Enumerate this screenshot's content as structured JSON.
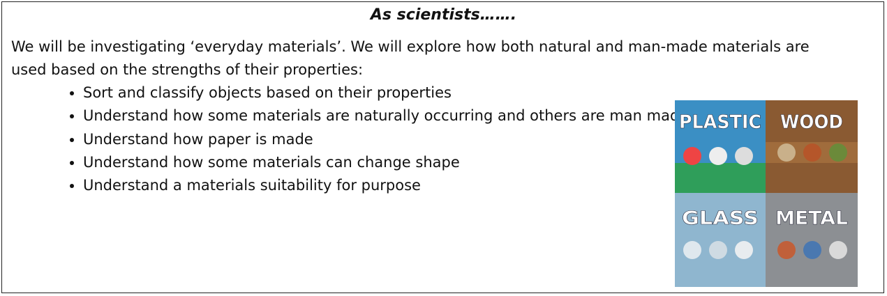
{
  "header": {
    "title": "As scientists……."
  },
  "paragraph": "We will be investigating ‘everyday materials’. We will explore how both natural and man-made materials are used based on the strengths of their properties:",
  "bullets": [
    "Sort and classify objects based on their properties",
    "Understand how some materials are naturally occurring and others are man made",
    "Understand how paper is made",
    "Understand how some materials can change shape",
    "Understand a materials suitability for purpose"
  ],
  "image": {
    "labels": [
      "PLASTIC",
      "WOOD",
      "GLASS",
      "METAL"
    ]
  }
}
